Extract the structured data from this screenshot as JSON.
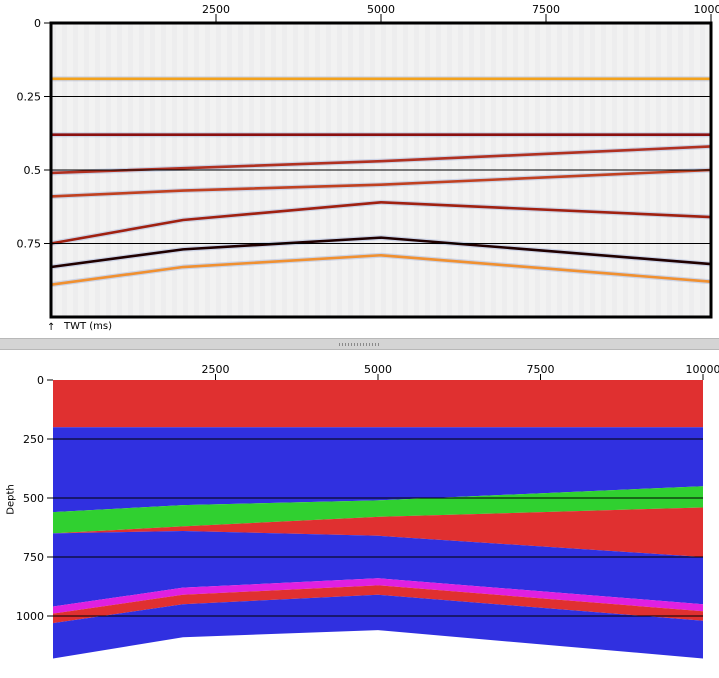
{
  "chart_data": [
    {
      "type": "heatmap",
      "title": "",
      "xlabel": "",
      "ylabel": "TWT (ms)",
      "x_ticks": [
        "2500",
        "5000",
        "7500",
        "10000"
      ],
      "y_ticks": [
        "0",
        "0.25",
        "0.5",
        "0.75"
      ],
      "xlim": [
        0,
        10000
      ],
      "ylim": [
        0,
        1.0
      ],
      "y_axis_inverted": true,
      "grid_lines_y": [
        0.25,
        0.5,
        0.75
      ],
      "reflectors": [
        {
          "x": [
            0,
            10000
          ],
          "y": [
            0.19,
            0.19
          ],
          "color": "#f3a21b"
        },
        {
          "x": [
            0,
            10000
          ],
          "y": [
            0.38,
            0.38
          ],
          "color": "#8b1010"
        },
        {
          "x": [
            0,
            5000,
            10000
          ],
          "y": [
            0.51,
            0.47,
            0.42
          ],
          "color": "#b03020"
        },
        {
          "x": [
            0,
            2000,
            5000,
            10000
          ],
          "y": [
            0.59,
            0.57,
            0.55,
            0.5
          ],
          "color": "#c04020"
        },
        {
          "x": [
            0,
            2000,
            5000,
            10000
          ],
          "y": [
            0.75,
            0.67,
            0.61,
            0.66
          ],
          "color": "#a02010"
        },
        {
          "x": [
            0,
            2000,
            5000,
            10000
          ],
          "y": [
            0.83,
            0.77,
            0.73,
            0.82
          ],
          "color": "#200000"
        },
        {
          "x": [
            0,
            2000,
            5000,
            10000
          ],
          "y": [
            0.89,
            0.83,
            0.79,
            0.88
          ],
          "color": "#f09030"
        }
      ]
    },
    {
      "type": "heatmap",
      "title": "",
      "xlabel": "",
      "ylabel": "Depth",
      "x_ticks": [
        "2500",
        "5000",
        "7500",
        "10000"
      ],
      "y_ticks": [
        "0",
        "250",
        "500",
        "750",
        "1000"
      ],
      "xlim": [
        0,
        10000
      ],
      "ylim": [
        0,
        1200
      ],
      "y_axis_inverted": true,
      "grid_lines_y": [
        250,
        500,
        750,
        1000
      ],
      "layers_note": "colored geologic units",
      "units": [
        {
          "color": "#e03030",
          "top": {
            "x": [
              0,
              10000
            ],
            "y": [
              0,
              0
            ]
          },
          "bottom": {
            "x": [
              0,
              10000
            ],
            "y": [
              200,
              200
            ]
          }
        },
        {
          "color": "#3030e0",
          "top": {
            "x": [
              0,
              10000
            ],
            "y": [
              200,
              200
            ]
          },
          "bottom": {
            "x": [
              0,
              2000,
              5000,
              10000
            ],
            "y": [
              560,
              530,
              510,
              450
            ]
          }
        },
        {
          "color": "#30d030",
          "top": {
            "x": [
              0,
              2000,
              5000,
              10000
            ],
            "y": [
              560,
              530,
              510,
              450
            ]
          },
          "bottom": {
            "x": [
              0,
              2000,
              5000,
              10000
            ],
            "y": [
              650,
              620,
              580,
              540
            ]
          }
        },
        {
          "color": "#e03030",
          "top": {
            "x": [
              0,
              2000,
              5000,
              10000
            ],
            "y": [
              650,
              620,
              580,
              540
            ]
          },
          "bottom": {
            "x": [
              0,
              2000,
              5000,
              10000
            ],
            "y": [
              650,
              640,
              660,
              750
            ]
          }
        },
        {
          "color": "#3030e0",
          "top": {
            "x": [
              0,
              2000,
              5000,
              10000
            ],
            "y": [
              650,
              640,
              660,
              750
            ]
          },
          "bottom": {
            "x": [
              0,
              2000,
              5000,
              10000
            ],
            "y": [
              960,
              880,
              840,
              950
            ]
          }
        },
        {
          "color": "#e020e0",
          "top": {
            "x": [
              0,
              2000,
              5000,
              10000
            ],
            "y": [
              960,
              880,
              840,
              950
            ]
          },
          "bottom": {
            "x": [
              0,
              2000,
              5000,
              10000
            ],
            "y": [
              990,
              910,
              870,
              980
            ]
          }
        },
        {
          "color": "#e03030",
          "top": {
            "x": [
              0,
              2000,
              5000,
              10000
            ],
            "y": [
              990,
              910,
              870,
              980
            ]
          },
          "bottom": {
            "x": [
              0,
              2000,
              5000,
              10000
            ],
            "y": [
              1030,
              950,
              910,
              1020
            ]
          }
        },
        {
          "color": "#3030e0",
          "top": {
            "x": [
              0,
              2000,
              5000,
              10000
            ],
            "y": [
              1030,
              950,
              910,
              1020
            ]
          },
          "bottom": {
            "x": [
              0,
              2000,
              5000,
              10000
            ],
            "y": [
              1180,
              1090,
              1060,
              1180
            ]
          }
        }
      ]
    }
  ],
  "top": {
    "axis_label": "TWT (ms)"
  },
  "bottom": {
    "axis_label": "Depth"
  },
  "colors": {
    "splitter": "#d4d4d4",
    "grid": "#000000"
  }
}
